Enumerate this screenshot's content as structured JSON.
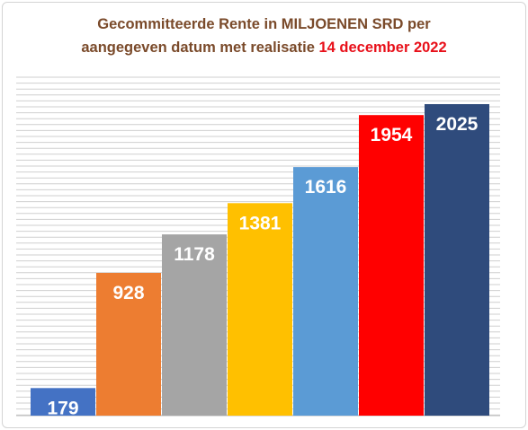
{
  "chart_data": {
    "type": "bar",
    "title_line1": "Gecommitteerde Rente in MILJOENEN SRD per",
    "title_line2": "aangegeven datum met realisatie",
    "title_highlight": "14 december 2022",
    "categories": [
      "",
      "",
      "",
      "",
      "",
      "",
      ""
    ],
    "values": [
      179,
      928,
      1178,
      1381,
      1616,
      1954,
      2025
    ],
    "colors": [
      "#4472c4",
      "#ed7d31",
      "#a5a5a5",
      "#ffc000",
      "#5b9bd5",
      "#ff0000",
      "#2f4b7c"
    ],
    "ylim": [
      0,
      2200
    ],
    "grid": true,
    "legend": "none",
    "xlabel": "",
    "ylabel": ""
  }
}
